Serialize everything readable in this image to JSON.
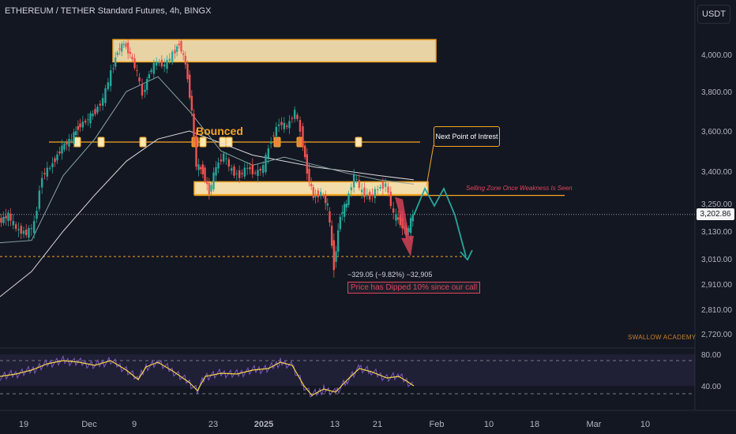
{
  "header": {
    "title": "ETHEREUM / TETHER Standard Futures, 4h, BINGX",
    "currency": "USDT"
  },
  "watermark": "SWALLOW ACADEMY",
  "annotations": {
    "bounced": "Bounced",
    "next_point": "Next Point of Intrest",
    "selling_zone": "Selling Zone Once Weakness Is Seen",
    "change": "−329.05 (−9.82%) −32,905",
    "dipped": "Price has Dipped 10% since our call",
    "brand": "SWALLOW ACADEMY"
  },
  "colors": {
    "background": "#131722",
    "bull": "#26a69a",
    "bear": "#ef5350",
    "zone": "#f5a623",
    "zone_fill": "#ffe8b3",
    "rsi": "#7e57c2",
    "rsi_ma": "#f5d442",
    "projection": "#26a69a",
    "dip_arrow": "#e0455a"
  },
  "chart_data": {
    "type": "line",
    "series_kind": "candlestick-approx",
    "current_price_label": "3,202.86",
    "y_ticks": [
      "4,000.00",
      "3,800.00",
      "3,600.00",
      "3,400.00",
      "3,250.00",
      "3,130.00",
      "3,010.00",
      "2,910.00",
      "2,810.00",
      "2,720.00"
    ],
    "x_ticks": [
      "19",
      "Dec",
      "9",
      "23",
      "2025",
      "13",
      "21",
      "Feb",
      "10",
      "18",
      "Mar",
      "10"
    ],
    "price_path": [
      [
        0,
        3170
      ],
      [
        12,
        3200
      ],
      [
        22,
        3140
      ],
      [
        35,
        3120
      ],
      [
        45,
        3160
      ],
      [
        55,
        3380
      ],
      [
        65,
        3420
      ],
      [
        80,
        3520
      ],
      [
        92,
        3560
      ],
      [
        100,
        3620
      ],
      [
        110,
        3650
      ],
      [
        122,
        3700
      ],
      [
        132,
        3760
      ],
      [
        142,
        3900
      ],
      [
        150,
        4020
      ],
      [
        158,
        4060
      ],
      [
        166,
        4000
      ],
      [
        175,
        3900
      ],
      [
        182,
        3780
      ],
      [
        190,
        3900
      ],
      [
        200,
        3960
      ],
      [
        210,
        3940
      ],
      [
        220,
        4000
      ],
      [
        228,
        4060
      ],
      [
        236,
        3950
      ],
      [
        244,
        3700
      ],
      [
        250,
        3430
      ],
      [
        258,
        3400
      ],
      [
        266,
        3300
      ],
      [
        275,
        3420
      ],
      [
        285,
        3480
      ],
      [
        295,
        3400
      ],
      [
        305,
        3380
      ],
      [
        315,
        3420
      ],
      [
        325,
        3390
      ],
      [
        335,
        3420
      ],
      [
        345,
        3560
      ],
      [
        355,
        3640
      ],
      [
        365,
        3620
      ],
      [
        375,
        3700
      ],
      [
        382,
        3600
      ],
      [
        390,
        3400
      ],
      [
        398,
        3280
      ],
      [
        408,
        3300
      ],
      [
        416,
        3240
      ],
      [
        424,
        2980
      ],
      [
        432,
        3200
      ],
      [
        440,
        3250
      ],
      [
        450,
        3380
      ],
      [
        460,
        3300
      ],
      [
        470,
        3280
      ],
      [
        480,
        3320
      ],
      [
        490,
        3340
      ],
      [
        500,
        3200
      ],
      [
        508,
        3170
      ],
      [
        516,
        3120
      ],
      [
        524,
        3200
      ]
    ],
    "ema_fast": [
      [
        0,
        3080
      ],
      [
        40,
        3090
      ],
      [
        80,
        3380
      ],
      [
        120,
        3560
      ],
      [
        160,
        3800
      ],
      [
        200,
        3880
      ],
      [
        240,
        3700
      ],
      [
        280,
        3500
      ],
      [
        320,
        3430
      ],
      [
        360,
        3470
      ],
      [
        400,
        3430
      ],
      [
        440,
        3390
      ],
      [
        480,
        3360
      ],
      [
        524,
        3340
      ]
    ],
    "ema_slow": [
      [
        0,
        2860
      ],
      [
        40,
        2960
      ],
      [
        80,
        3130
      ],
      [
        120,
        3290
      ],
      [
        160,
        3450
      ],
      [
        200,
        3560
      ],
      [
        240,
        3600
      ],
      [
        280,
        3540
      ],
      [
        320,
        3480
      ],
      [
        360,
        3450
      ],
      [
        400,
        3420
      ],
      [
        440,
        3400
      ],
      [
        480,
        3380
      ],
      [
        524,
        3360
      ]
    ],
    "projection_path": [
      [
        524,
        3200
      ],
      [
        538,
        3320
      ],
      [
        550,
        3240
      ],
      [
        562,
        3320
      ],
      [
        576,
        3200
      ],
      [
        590,
        3020
      ]
    ],
    "levels": {
      "supply_zone": [
        3960,
        4080
      ],
      "bounce_line": 3545,
      "selling_zone": [
        3310,
        3340
      ],
      "support_dashed": 3020,
      "current": 3202.86
    },
    "rsi": {
      "upper_label": "80.00",
      "lower_label": "40.00",
      "values": [
        [
          0,
          52
        ],
        [
          20,
          55
        ],
        [
          40,
          60
        ],
        [
          60,
          68
        ],
        [
          80,
          72
        ],
        [
          100,
          70
        ],
        [
          120,
          66
        ],
        [
          140,
          72
        ],
        [
          160,
          60
        ],
        [
          175,
          48
        ],
        [
          185,
          64
        ],
        [
          200,
          70
        ],
        [
          220,
          58
        ],
        [
          240,
          44
        ],
        [
          250,
          34
        ],
        [
          260,
          52
        ],
        [
          280,
          56
        ],
        [
          300,
          55
        ],
        [
          320,
          60
        ],
        [
          340,
          62
        ],
        [
          355,
          70
        ],
        [
          370,
          66
        ],
        [
          385,
          40
        ],
        [
          395,
          28
        ],
        [
          410,
          36
        ],
        [
          425,
          32
        ],
        [
          440,
          48
        ],
        [
          455,
          62
        ],
        [
          470,
          58
        ],
        [
          490,
          50
        ],
        [
          505,
          52
        ],
        [
          515,
          46
        ],
        [
          524,
          40
        ]
      ]
    }
  }
}
